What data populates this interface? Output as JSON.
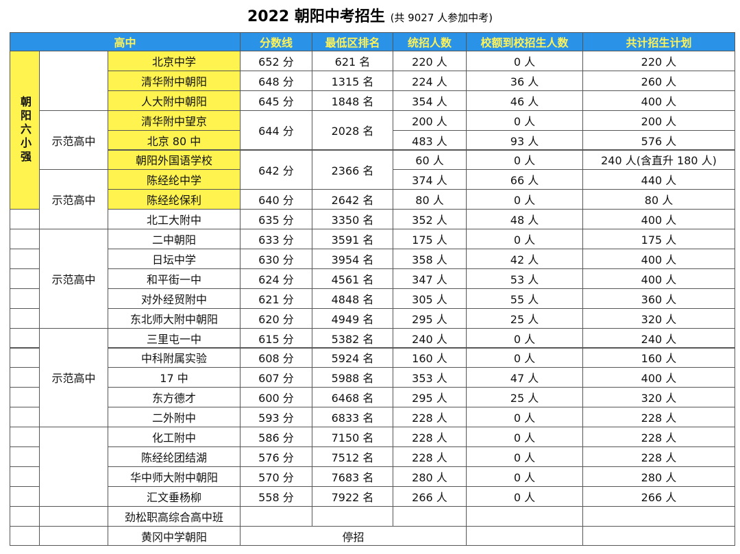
{
  "title": "2022 朝阳中考招生",
  "subtitle": "(共 9027 人参加中考)",
  "headers": [
    "高中",
    "分数线",
    "最低区排名",
    "统招人数",
    "校额到校招生人数",
    "共计招生计划"
  ],
  "group_label": "朝阳六小强",
  "tiers": [
    "示范高中",
    "示范高中",
    "示范高中",
    "示范高中"
  ],
  "rows": [
    [
      "北京中学",
      "652 分",
      "621 名",
      "220 人",
      "0 人",
      "220 人"
    ],
    [
      "清华附中朝阳",
      "648 分",
      "1315 名",
      "224 人",
      "36 人",
      "260 人"
    ],
    [
      "人大附中朝阳",
      "645 分",
      "1848 名",
      "354 人",
      "46 人",
      "400 人"
    ],
    [
      "清华附中望京",
      "644 分",
      "2028 名",
      "200 人",
      "0 人",
      "200 人"
    ],
    [
      "北京 80 中",
      null,
      null,
      "483 人",
      "93 人",
      "576 人"
    ],
    [
      "朝阳外国语学校",
      "642 分",
      "2366 名",
      "60 人",
      "0 人",
      "240 人(含直升 180 人)"
    ],
    [
      "陈经纶中学",
      null,
      null,
      "374 人",
      "66 人",
      "440 人"
    ],
    [
      "陈经纶保利",
      "640 分",
      "2642 名",
      "80 人",
      "0 人",
      "80 人"
    ],
    [
      "北工大附中",
      "635 分",
      "3350 名",
      "352 人",
      "48 人",
      "400 人"
    ],
    [
      "二中朝阳",
      "633 分",
      "3591 名",
      "175 人",
      "0 人",
      "175 人"
    ],
    [
      "日坛中学",
      "630 分",
      "3954 名",
      "358 人",
      "42 人",
      "400 人"
    ],
    [
      "和平街一中",
      "624 分",
      "4561 名",
      "347 人",
      "53 人",
      "400 人"
    ],
    [
      "对外经贸附中",
      "621 分",
      "4848 名",
      "305 人",
      "55 人",
      "360 人"
    ],
    [
      "东北师大附中朝阳",
      "620 分",
      "4949 名",
      "295 人",
      "25 人",
      "320 人"
    ],
    [
      "三里屯一中",
      "615 分",
      "5382 名",
      "240 人",
      "0 人",
      "240 人"
    ],
    [
      "中科附属实验",
      "608 分",
      "5924 名",
      "160 人",
      "0 人",
      "160 人"
    ],
    [
      "17 中",
      "607 分",
      "5988 名",
      "353 人",
      "47 人",
      "400 人"
    ],
    [
      "东方德才",
      "600 分",
      "6468 名",
      "295 人",
      "25 人",
      "320 人"
    ],
    [
      "二外附中",
      "593 分",
      "6833 名",
      "228 人",
      "0 人",
      "228 人"
    ],
    [
      "化工附中",
      "586 分",
      "7150 名",
      "228 人",
      "0 人",
      "228 人"
    ],
    [
      "陈经纶团结湖",
      "576 分",
      "7512 名",
      "228 人",
      "0 人",
      "228 人"
    ],
    [
      "华中师大附中朝阳",
      "570 分",
      "7683 名",
      "280 人",
      "0 人",
      "280 人"
    ],
    [
      "汇文垂杨柳",
      "558 分",
      "7922 名",
      "266 人",
      "0 人",
      "266 人"
    ],
    [
      "劲松职高综合高中班",
      null,
      null,
      null,
      null,
      null
    ],
    [
      "黄冈中学朝阳",
      "停招",
      null,
      null,
      null,
      null
    ]
  ]
}
